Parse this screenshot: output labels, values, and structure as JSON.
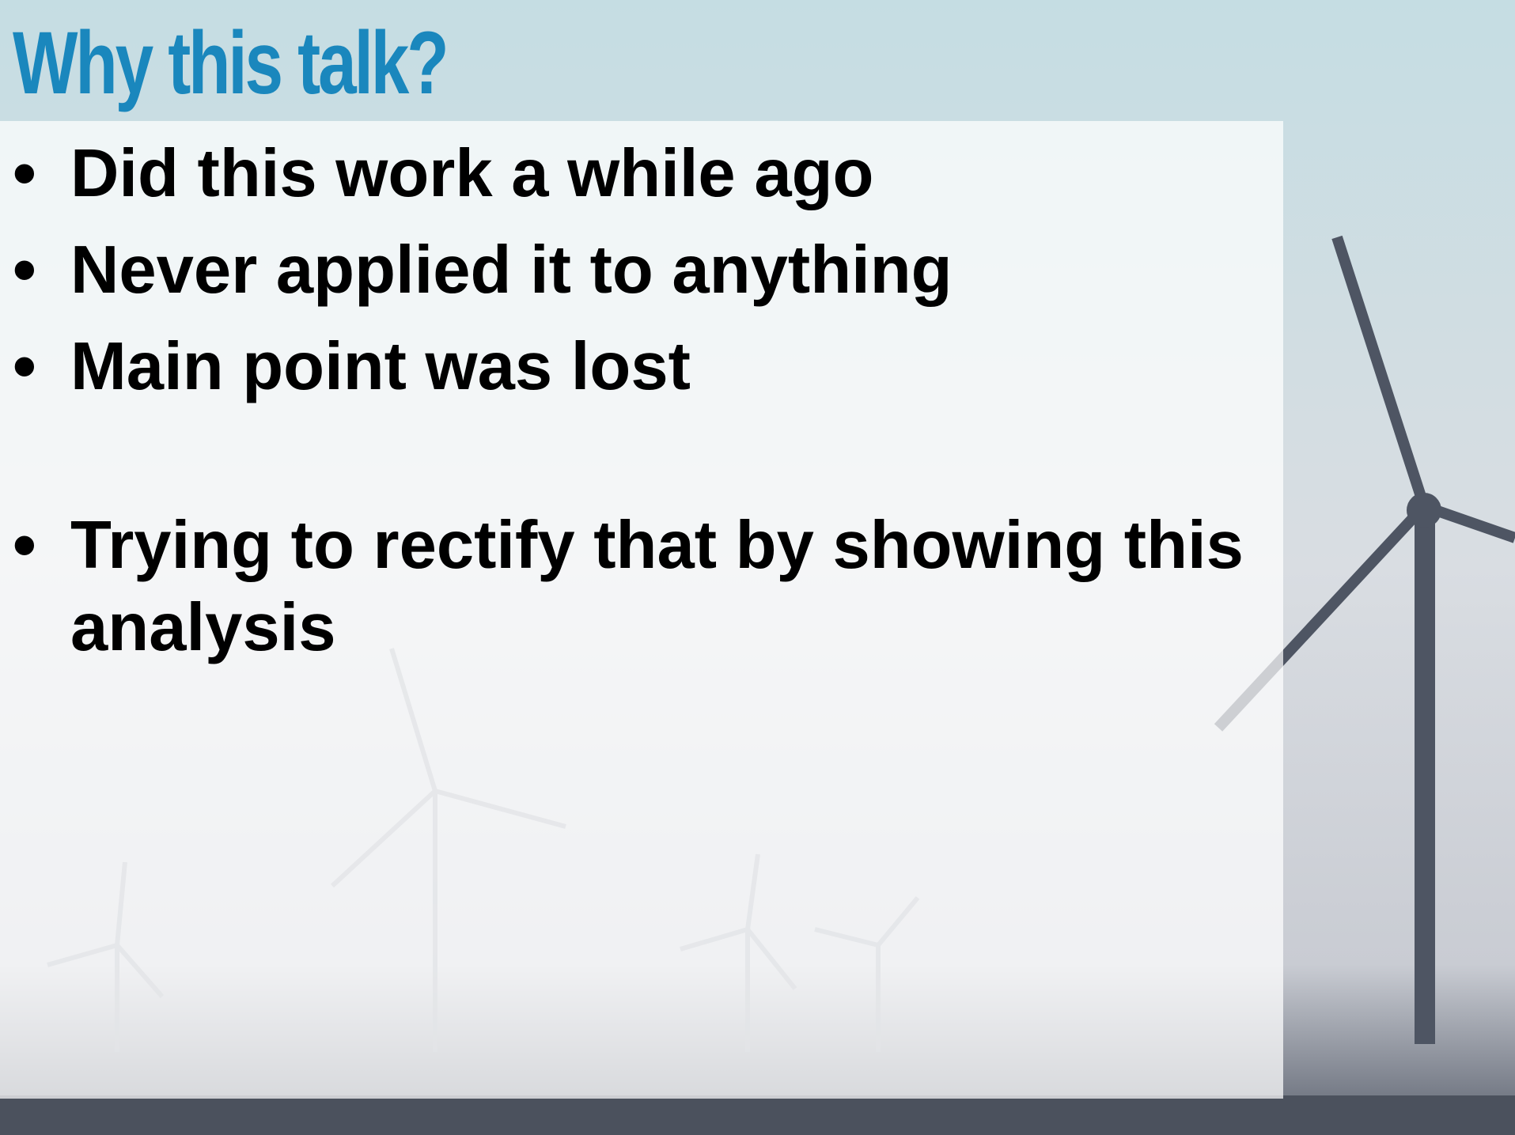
{
  "slide": {
    "title": "Why this talk?",
    "bullets": [
      "Did this work a while ago",
      "Never applied it to anything",
      "Main point was lost",
      "Trying to rectify that by showing this analysis"
    ]
  }
}
